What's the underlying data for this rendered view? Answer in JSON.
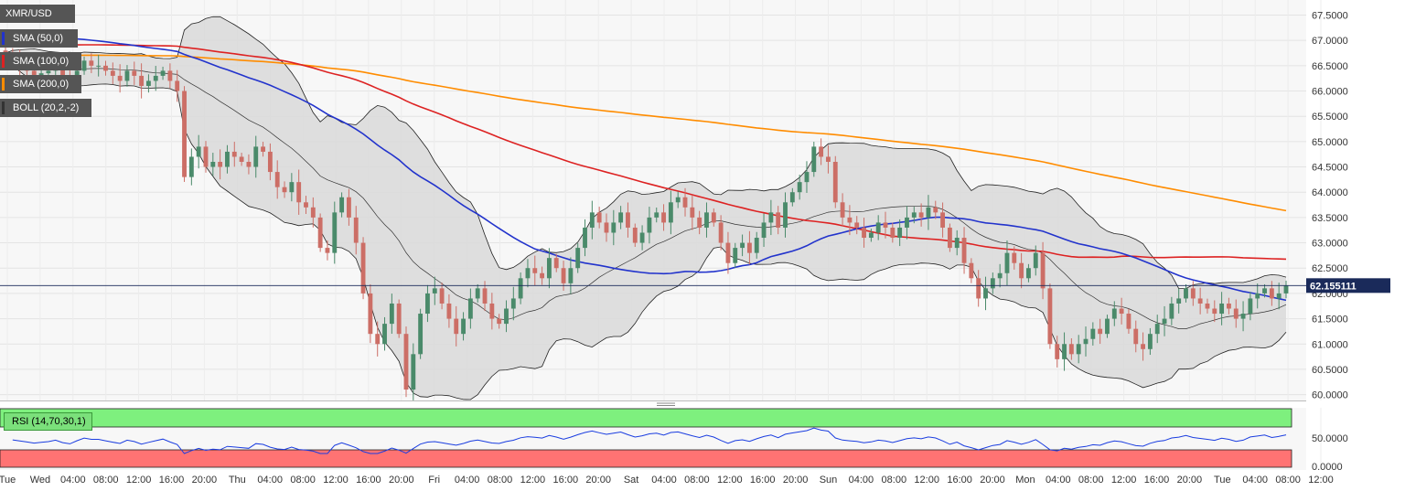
{
  "symbol": "XMR/USD",
  "indicators": [
    {
      "label": "SMA (50,0)",
      "color": "#2233cc"
    },
    {
      "label": "SMA (100,0)",
      "color": "#dd2222"
    },
    {
      "label": "SMA (200,0)",
      "color": "#ff8c00"
    },
    {
      "label": "BOLL (20,2,-2)",
      "color": "#333333"
    }
  ],
  "rsi_label": "RSI (14,70,30,1)",
  "current_price_label": "62.155111",
  "colors": {
    "up": "#4a8a6a",
    "down": "#cc6e66",
    "sma50": "#2233cc",
    "sma100": "#dd2222",
    "sma200": "#ff8c00",
    "band_fill": "#d9d9d9",
    "rsi_overbought": "#7ef07e",
    "rsi_oversold": "#ff7373",
    "rsi_line": "#1a3de0"
  },
  "chart_data": {
    "type": "candlestick",
    "ylim": [
      59.95,
      67.6
    ],
    "yticks": [
      "67.5000",
      "67.0000",
      "66.5000",
      "66.0000",
      "65.5000",
      "65.0000",
      "64.5000",
      "64.0000",
      "63.5000",
      "63.0000",
      "62.5000",
      "62.0000",
      "61.5000",
      "61.0000",
      "60.5000",
      "60.0000"
    ],
    "xticks": [
      "Tue",
      "Wed",
      "04:00",
      "08:00",
      "12:00",
      "16:00",
      "20:00",
      "Thu",
      "04:00",
      "08:00",
      "12:00",
      "16:00",
      "20:00",
      "Fri",
      "04:00",
      "08:00",
      "12:00",
      "16:00",
      "20:00",
      "Sat",
      "04:00",
      "08:00",
      "12:00",
      "16:00",
      "20:00",
      "Sun",
      "04:00",
      "08:00",
      "12:00",
      "16:00",
      "20:00",
      "Mon",
      "04:00",
      "08:00",
      "12:00",
      "16:00",
      "20:00",
      "Tue",
      "04:00",
      "08:00",
      "12:00"
    ],
    "current_price": 62.155111,
    "candles_close": [
      66.7,
      66.6,
      66.5,
      66.4,
      66.3,
      66.35,
      66.4,
      66.5,
      66.3,
      66.2,
      66.4,
      66.6,
      66.5,
      66.5,
      66.4,
      66.3,
      66.2,
      66.4,
      66.3,
      66.1,
      66.2,
      66.3,
      66.4,
      66.2,
      66.0,
      64.3,
      64.7,
      64.9,
      64.5,
      64.6,
      64.5,
      64.8,
      64.7,
      64.6,
      64.5,
      64.9,
      64.8,
      64.4,
      64.1,
      64.0,
      64.2,
      63.8,
      63.7,
      63.5,
      62.9,
      62.8,
      63.6,
      63.9,
      63.5,
      63.0,
      62.0,
      61.2,
      61.0,
      61.4,
      61.8,
      61.2,
      60.1,
      60.8,
      61.6,
      62.0,
      62.1,
      61.8,
      61.5,
      61.2,
      61.5,
      61.9,
      62.1,
      61.8,
      61.5,
      61.4,
      61.7,
      61.9,
      62.3,
      62.5,
      62.4,
      62.3,
      62.7,
      62.5,
      62.2,
      62.5,
      62.9,
      63.3,
      63.6,
      63.4,
      63.2,
      63.4,
      63.6,
      63.3,
      63.0,
      63.2,
      63.5,
      63.6,
      63.4,
      63.8,
      63.9,
      63.7,
      63.5,
      63.3,
      63.6,
      63.4,
      63.0,
      62.6,
      62.9,
      63.0,
      62.8,
      63.1,
      63.4,
      63.6,
      63.3,
      63.8,
      64.0,
      64.2,
      64.4,
      64.9,
      64.7,
      64.6,
      63.8,
      63.5,
      63.4,
      63.3,
      63.1,
      63.2,
      63.4,
      63.3,
      63.1,
      63.3,
      63.5,
      63.6,
      63.5,
      63.7,
      63.6,
      63.3,
      62.9,
      63.1,
      62.6,
      62.3,
      61.9,
      62.1,
      62.3,
      62.4,
      62.8,
      62.6,
      62.3,
      62.5,
      62.8,
      62.1,
      61.0,
      60.7,
      61.0,
      60.8,
      61.0,
      61.1,
      61.3,
      61.2,
      61.5,
      61.7,
      61.6,
      61.3,
      61.0,
      60.9,
      61.2,
      61.4,
      61.5,
      61.8,
      61.9,
      62.1,
      61.9,
      61.8,
      61.7,
      61.6,
      61.8,
      61.7,
      61.5,
      61.6,
      61.9,
      62.0,
      62.1,
      61.9,
      62.0,
      62.155111
    ]
  }
}
